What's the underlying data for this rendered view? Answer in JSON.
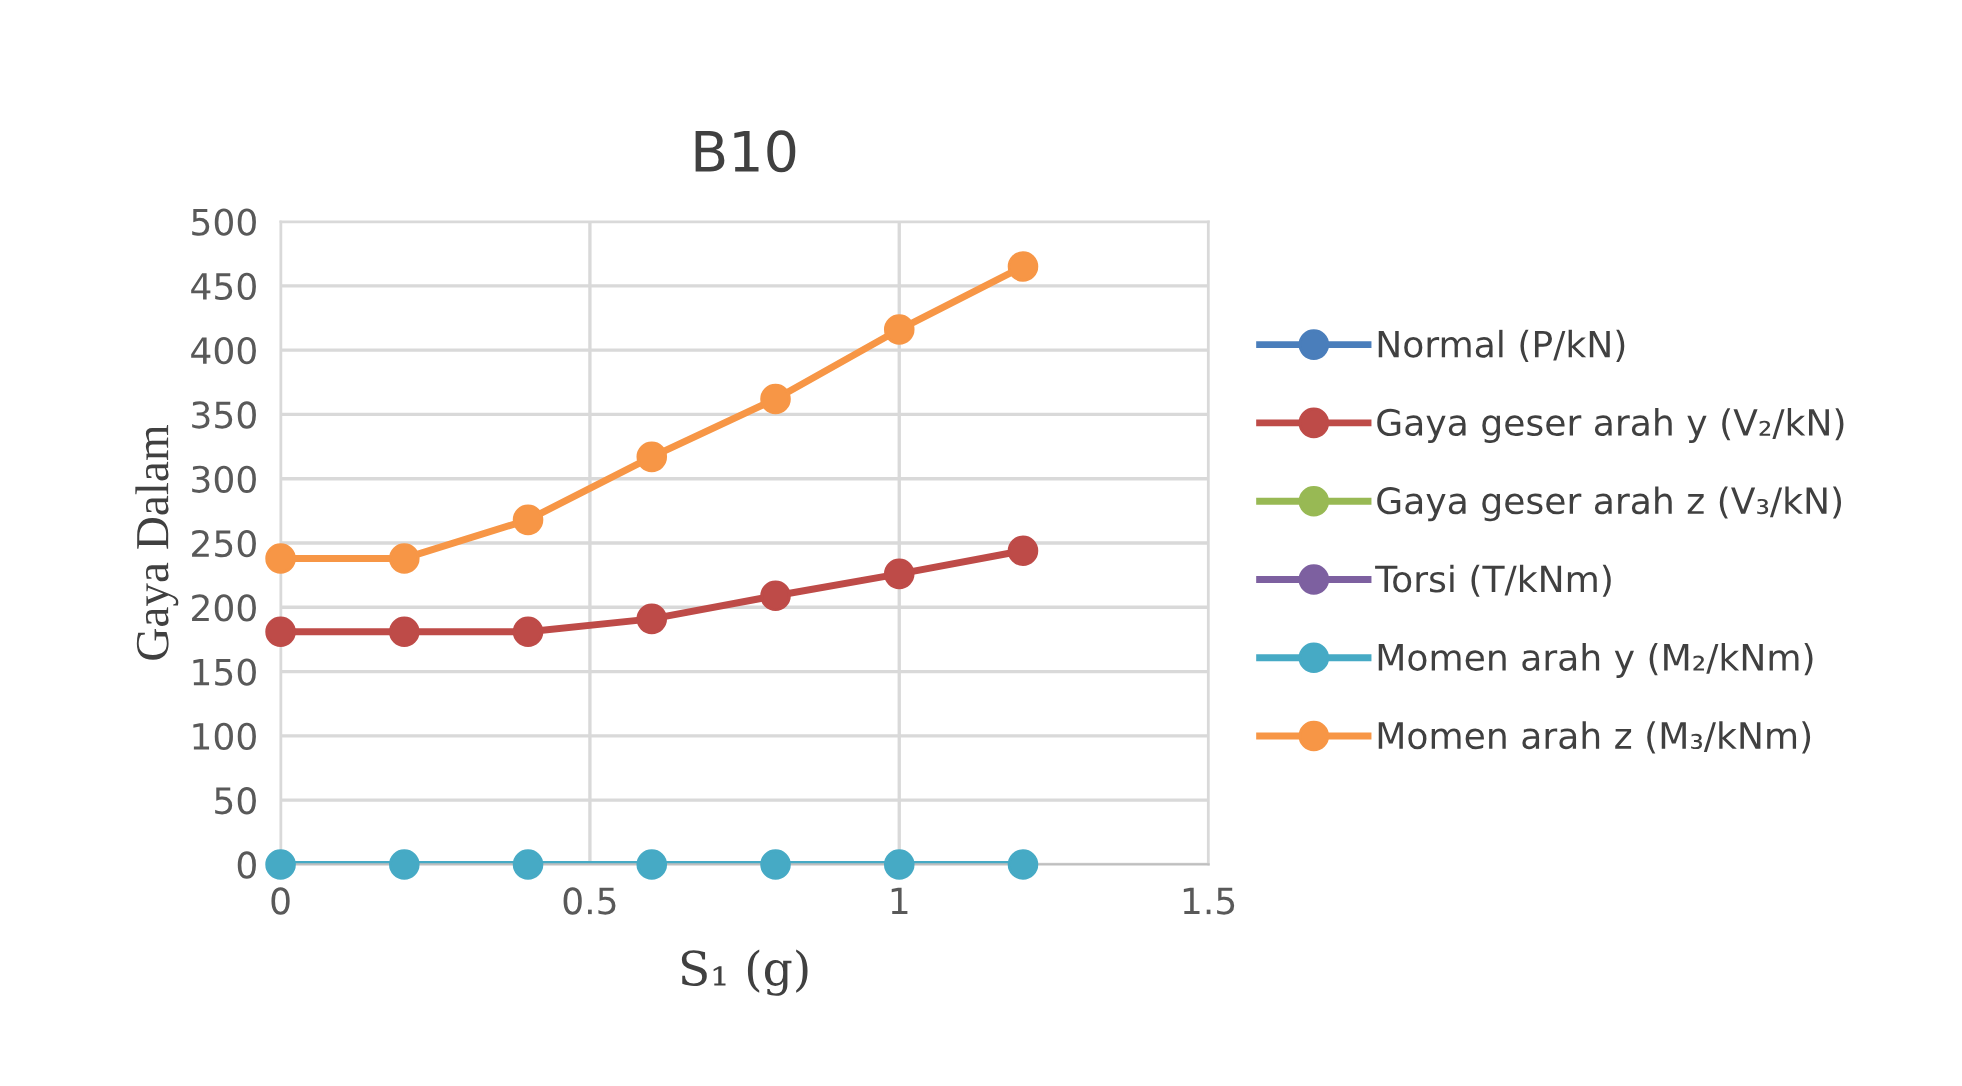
{
  "chart_data": {
    "type": "line",
    "title": "B10",
    "xlabel": "S₁ (g)",
    "ylabel": "Gaya Dalam",
    "x": [
      0,
      0.2,
      0.4,
      0.6,
      0.8,
      1,
      1.2
    ],
    "xlim": [
      0,
      1.5
    ],
    "xticks": [
      0,
      0.5,
      1,
      1.5
    ],
    "ylim": [
      0,
      500
    ],
    "yticks": [
      0,
      50,
      100,
      150,
      200,
      250,
      300,
      350,
      400,
      450,
      500
    ],
    "grid": true,
    "legend": "right",
    "marker": "circle",
    "line_style": "solid",
    "series": [
      {
        "name": "Normal (P/kN)",
        "color": "#4a7ebb",
        "values": [
          null,
          null,
          null,
          null,
          null,
          null,
          null
        ]
      },
      {
        "name": "Gaya geser arah y (V₂/kN)",
        "color": "#be4b48",
        "values": [
          181,
          181,
          181,
          191,
          209,
          226,
          244
        ]
      },
      {
        "name": "Gaya geser arah z (V₃/kN)",
        "color": "#98b954",
        "values": [
          null,
          null,
          null,
          null,
          null,
          null,
          null
        ]
      },
      {
        "name": "Torsi (T/kNm)",
        "color": "#7d60a0",
        "values": [
          null,
          null,
          null,
          null,
          null,
          null,
          null
        ]
      },
      {
        "name": "Momen arah y (M₂/kNm)",
        "color": "#46aac5",
        "values": [
          0,
          0,
          0,
          0,
          0,
          0,
          0
        ]
      },
      {
        "name": "Momen arah z (M₃/kNm)",
        "color": "#f79646",
        "values": [
          238,
          238,
          268,
          317,
          362,
          416,
          465
        ]
      }
    ]
  }
}
